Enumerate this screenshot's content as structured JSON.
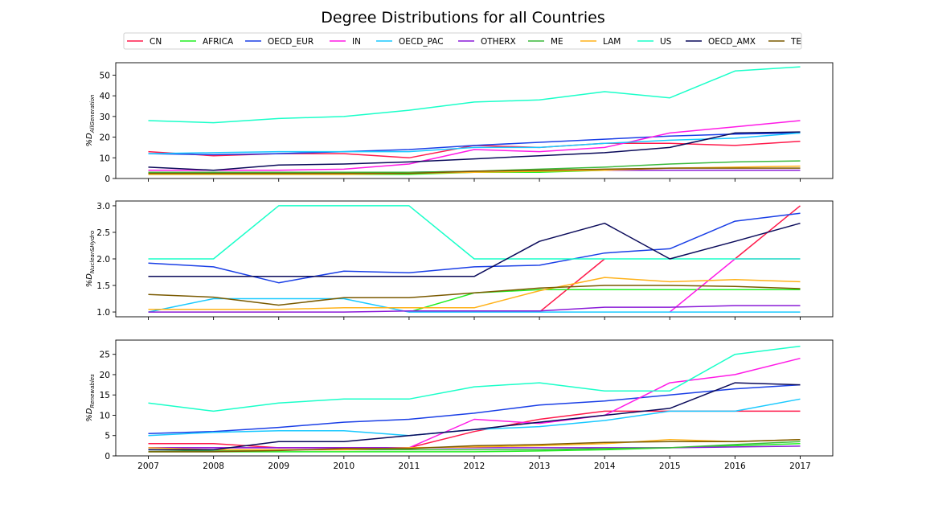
{
  "title": "Degree Distributions for all Countries",
  "legend": {
    "position": "top-center",
    "entries": [
      {
        "name": "CN",
        "color": "#ff1a4b"
      },
      {
        "name": "AFRICA",
        "color": "#22ee22"
      },
      {
        "name": "OECD_EUR",
        "color": "#1a3fe6"
      },
      {
        "name": "IN",
        "color": "#ff1ae6"
      },
      {
        "name": "OECD_PAC",
        "color": "#1ac9ff"
      },
      {
        "name": "OTHERX",
        "color": "#8a1ad8"
      },
      {
        "name": "ME",
        "color": "#3ab93a"
      },
      {
        "name": "LAM",
        "color": "#ffb21a"
      },
      {
        "name": "US",
        "color": "#1affc9"
      },
      {
        "name": "OECD_AMX",
        "color": "#0a0a5a"
      },
      {
        "name": "TE",
        "color": "#7a5a00"
      }
    ]
  },
  "chart_data": [
    {
      "type": "line",
      "ylabel": "%D_AllGeneration",
      "ylabel_main": "%D",
      "ylabel_sub": "AllGeneration",
      "ylim": [
        0,
        56
      ],
      "yticks": [
        0,
        10,
        20,
        30,
        40,
        50
      ],
      "x": [
        2007,
        2008,
        2009,
        2010,
        2011,
        2012,
        2013,
        2014,
        2015,
        2016,
        2017
      ],
      "grid": false,
      "series": [
        {
          "name": "CN",
          "values": [
            13,
            11,
            12,
            12,
            10,
            16,
            15,
            17,
            17,
            16,
            18
          ]
        },
        {
          "name": "AFRICA",
          "values": [
            2,
            2,
            2,
            2,
            2,
            3,
            3,
            4,
            4,
            4,
            4
          ]
        },
        {
          "name": "OECD_EUR",
          "values": [
            12,
            11.5,
            12,
            13,
            14,
            16,
            17.5,
            19,
            20.5,
            21.5,
            22
          ]
        },
        {
          "name": "IN",
          "values": [
            4,
            4,
            4,
            4.5,
            7,
            14,
            13,
            15,
            22,
            25,
            28
          ]
        },
        {
          "name": "OECD_PAC",
          "values": [
            12,
            12.5,
            13,
            13,
            13,
            15,
            15,
            17,
            18.5,
            19.5,
            22
          ]
        },
        {
          "name": "OTHERX",
          "values": [
            3,
            3,
            3,
            3,
            3,
            3.5,
            4,
            4,
            4,
            4,
            4
          ]
        },
        {
          "name": "ME",
          "values": [
            3,
            3,
            3,
            3,
            3,
            3.5,
            4.5,
            5.5,
            7,
            8,
            8.5
          ]
        },
        {
          "name": "LAM",
          "values": [
            2,
            2,
            2,
            2,
            2.5,
            3,
            3.5,
            4,
            5,
            5.5,
            6
          ]
        },
        {
          "name": "US",
          "values": [
            28,
            27,
            29,
            30,
            33,
            37,
            38,
            42,
            39,
            52,
            54
          ]
        },
        {
          "name": "OECD_AMX",
          "values": [
            5.5,
            4,
            6.5,
            7,
            8,
            9.5,
            11,
            12.5,
            15,
            22,
            22.5
          ]
        },
        {
          "name": "TE",
          "values": [
            2.5,
            2.5,
            2.5,
            2.5,
            2.5,
            3.5,
            4,
            4.5,
            5,
            5,
            5
          ]
        }
      ]
    },
    {
      "type": "line",
      "ylabel": "%D_Nuclear&Hydro",
      "ylabel_main": "%D",
      "ylabel_sub": "Nuclear&Hydro",
      "ylim": [
        0.91,
        3.09
      ],
      "yticks": [
        1.0,
        1.5,
        2.0,
        2.5,
        3.0
      ],
      "ytick_labels": [
        "1.0",
        "1.5",
        "2.0",
        "2.5",
        "3.0"
      ],
      "x": [
        2007,
        2008,
        2009,
        2010,
        2011,
        2012,
        2013,
        2014,
        2015,
        2016,
        2017
      ],
      "grid": false,
      "series": [
        {
          "name": "CN",
          "x": [
            2013,
            2014
          ],
          "values": [
            1.0,
            2.0
          ]
        },
        {
          "name": "CN",
          "x": [
            2016,
            2017
          ],
          "values": [
            2.0,
            3.0
          ]
        },
        {
          "name": "AFRICA",
          "x": [
            2011,
            2012,
            2013,
            2014,
            2015,
            2016,
            2017
          ],
          "values": [
            1.0,
            1.36,
            1.42,
            1.42,
            1.42,
            1.42,
            1.42
          ]
        },
        {
          "name": "OECD_EUR",
          "values": [
            1.92,
            1.85,
            1.55,
            1.77,
            1.74,
            1.85,
            1.88,
            2.11,
            2.19,
            2.71,
            2.86
          ]
        },
        {
          "name": "IN",
          "x": [
            2015,
            2016,
            2017
          ],
          "values": [
            1.0,
            2.0,
            2.0
          ]
        },
        {
          "name": "OECD_PAC",
          "values": [
            1.0,
            1.25,
            1.25,
            1.25,
            1.0,
            1.0,
            1.0,
            1.0,
            1.0,
            1.0,
            1.0
          ]
        },
        {
          "name": "OTHERX",
          "values": [
            1.0,
            1.0,
            1.0,
            1.0,
            1.02,
            1.02,
            1.02,
            1.09,
            1.09,
            1.12,
            1.12
          ]
        },
        {
          "name": "LAM",
          "values": [
            1.05,
            1.05,
            1.05,
            1.08,
            1.08,
            1.08,
            1.4,
            1.65,
            1.57,
            1.61,
            1.57
          ]
        },
        {
          "name": "US",
          "values": [
            2.0,
            2.0,
            3.0,
            3.0,
            3.0,
            2.0,
            2.0,
            2.0,
            2.0,
            2.0,
            2.0
          ]
        },
        {
          "name": "OECD_AMX",
          "values": [
            1.67,
            1.67,
            1.67,
            1.67,
            1.67,
            1.67,
            2.33,
            2.67,
            2.0,
            2.33,
            2.67
          ]
        },
        {
          "name": "TE",
          "values": [
            1.33,
            1.28,
            1.13,
            1.27,
            1.27,
            1.36,
            1.45,
            1.5,
            1.5,
            1.48,
            1.44
          ]
        }
      ]
    },
    {
      "type": "line",
      "ylabel": "%D_Renewables",
      "ylabel_main": "%D",
      "ylabel_sub": "Renewables",
      "ylim": [
        0,
        28.5
      ],
      "yticks": [
        0,
        5,
        10,
        15,
        20,
        25
      ],
      "x": [
        2007,
        2008,
        2009,
        2010,
        2011,
        2012,
        2013,
        2014,
        2015,
        2016,
        2017
      ],
      "grid": false,
      "series": [
        {
          "name": "CN",
          "values": [
            3,
            3,
            2,
            2,
            2,
            6,
            9,
            11,
            11,
            11,
            11
          ]
        },
        {
          "name": "AFRICA",
          "values": [
            1,
            1,
            1,
            1,
            1,
            1,
            1.2,
            1.5,
            2,
            2.5,
            3
          ]
        },
        {
          "name": "OECD_EUR",
          "values": [
            5.5,
            6,
            7,
            8.3,
            9,
            10.5,
            12.5,
            13.5,
            15,
            16.5,
            17.5
          ]
        },
        {
          "name": "IN",
          "values": [
            2,
            2,
            2,
            2,
            2,
            9,
            8,
            10,
            18,
            20,
            24
          ]
        },
        {
          "name": "OECD_PAC",
          "values": [
            5,
            5.8,
            6.2,
            6.2,
            5,
            6.5,
            7.2,
            8.7,
            11,
            11,
            14
          ]
        },
        {
          "name": "OTHERX",
          "values": [
            2,
            2,
            2,
            2,
            2,
            2,
            2,
            2,
            2,
            2.2,
            2.4
          ]
        },
        {
          "name": "ME",
          "values": [
            1.5,
            1.2,
            1.5,
            1.5,
            1.5,
            1.5,
            1.5,
            1.8,
            2,
            2.8,
            3.5
          ]
        },
        {
          "name": "LAM",
          "values": [
            2,
            1.5,
            1.5,
            1.5,
            2,
            2.2,
            2.5,
            3,
            4,
            3.5,
            4
          ]
        },
        {
          "name": "US",
          "values": [
            13,
            11,
            13,
            14,
            14,
            17,
            18,
            16,
            16,
            25,
            27
          ]
        },
        {
          "name": "OECD_AMX",
          "values": [
            1.5,
            1.5,
            3.5,
            3.5,
            5,
            6.5,
            8.3,
            10,
            11.7,
            18,
            17.5
          ]
        },
        {
          "name": "TE",
          "values": [
            1,
            1,
            1.3,
            1.8,
            1.8,
            2.5,
            2.8,
            3.3,
            3.5,
            3.5,
            4
          ]
        }
      ]
    }
  ]
}
